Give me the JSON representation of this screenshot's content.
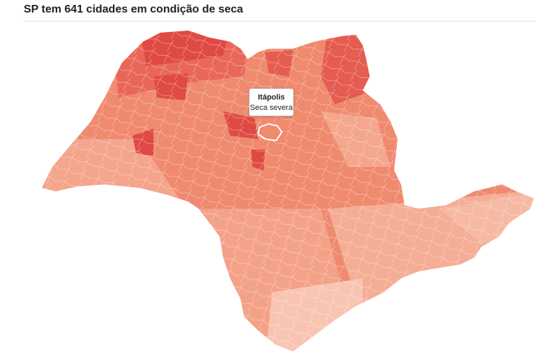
{
  "header": {
    "title": "SP tem 641 cidades em condição de seca"
  },
  "tooltip": {
    "city": "Itápolis",
    "status": "Seca severa"
  }
}
